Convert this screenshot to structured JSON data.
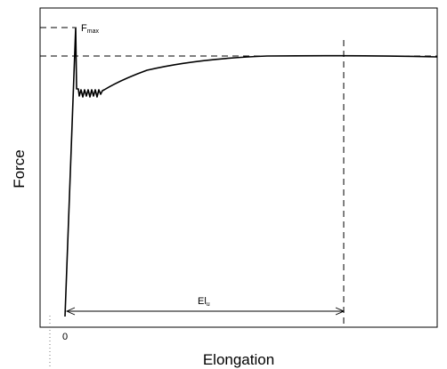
{
  "chart_data": {
    "type": "line",
    "title": "",
    "xlabel": "Elongation",
    "ylabel": "Force",
    "x_tick_labels": [
      "0"
    ],
    "annotations": {
      "fmax_main": "F",
      "fmax_sub": "max",
      "elu_main": "El",
      "elu_sub": "u"
    },
    "grid": false,
    "legend": "none",
    "line_color": "#000000"
  }
}
